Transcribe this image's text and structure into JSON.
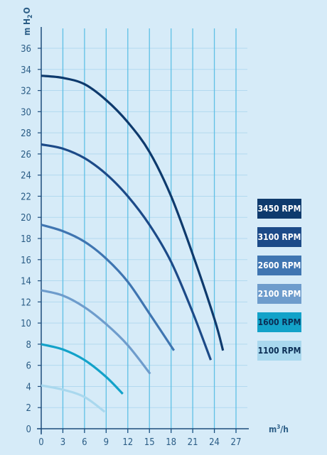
{
  "chart_data": {
    "type": "line",
    "ylabel": "mH2O",
    "ylabel_parts": {
      "base": "m H",
      "sub": "2",
      "tail": "O"
    },
    "xlabel": "m³/h",
    "xlabel_parts": {
      "base": "m",
      "sup": "3",
      "tail": "/h"
    },
    "xlim": [
      0,
      27
    ],
    "ylim": [
      0,
      36
    ],
    "x_ticks": [
      "0",
      "3",
      "6",
      "9",
      "12",
      "15",
      "18",
      "21",
      "24",
      "27"
    ],
    "y_ticks": [
      "0",
      "2",
      "4",
      "6",
      "8",
      "10",
      "12",
      "14",
      "16",
      "18",
      "20",
      "22",
      "24",
      "26",
      "28",
      "30",
      "32",
      "34",
      "36"
    ],
    "grid": {
      "vertical": true,
      "horizontal": true
    },
    "legend_position": "right",
    "series": [
      {
        "name": "3450 RPM",
        "color": "#0e3a6d",
        "text_color": "#ffffff",
        "x": [
          0,
          3,
          6,
          9,
          12,
          15,
          18,
          21,
          24,
          25.2
        ],
        "y": [
          33.4,
          33.2,
          32.6,
          31.1,
          29.0,
          26.2,
          22.0,
          16.5,
          10.4,
          7.4
        ]
      },
      {
        "name": "3100 RPM",
        "color": "#1c4a88",
        "text_color": "#ffffff",
        "x": [
          0,
          3,
          6,
          9,
          12,
          15,
          18,
          21,
          23.5
        ],
        "y": [
          26.9,
          26.5,
          25.6,
          24.1,
          22.0,
          19.3,
          15.8,
          11.0,
          6.5
        ]
      },
      {
        "name": "2600 RPM",
        "color": "#3f75b1",
        "text_color": "#ffffff",
        "x": [
          0,
          3,
          6,
          9,
          12,
          15,
          18.4
        ],
        "y": [
          19.3,
          18.7,
          17.7,
          16.1,
          13.9,
          10.9,
          7.4
        ]
      },
      {
        "name": "2100 RPM",
        "color": "#6e9ccc",
        "text_color": "#ffffff",
        "x": [
          0,
          3,
          6,
          9,
          12,
          15.1
        ],
        "y": [
          13.1,
          12.6,
          11.5,
          9.9,
          7.9,
          5.2
        ]
      },
      {
        "name": "1600 RPM",
        "color": "#13a2c9",
        "text_color": "#0b2e55",
        "x": [
          0,
          3,
          6,
          9,
          11.3
        ],
        "y": [
          8.0,
          7.5,
          6.5,
          4.9,
          3.3
        ]
      },
      {
        "name": "1100 RPM",
        "color": "#a9d8ee",
        "text_color": "#0b2e55",
        "x": [
          0,
          3,
          6,
          8.8
        ],
        "y": [
          4.1,
          3.7,
          3.0,
          1.6
        ]
      }
    ]
  }
}
